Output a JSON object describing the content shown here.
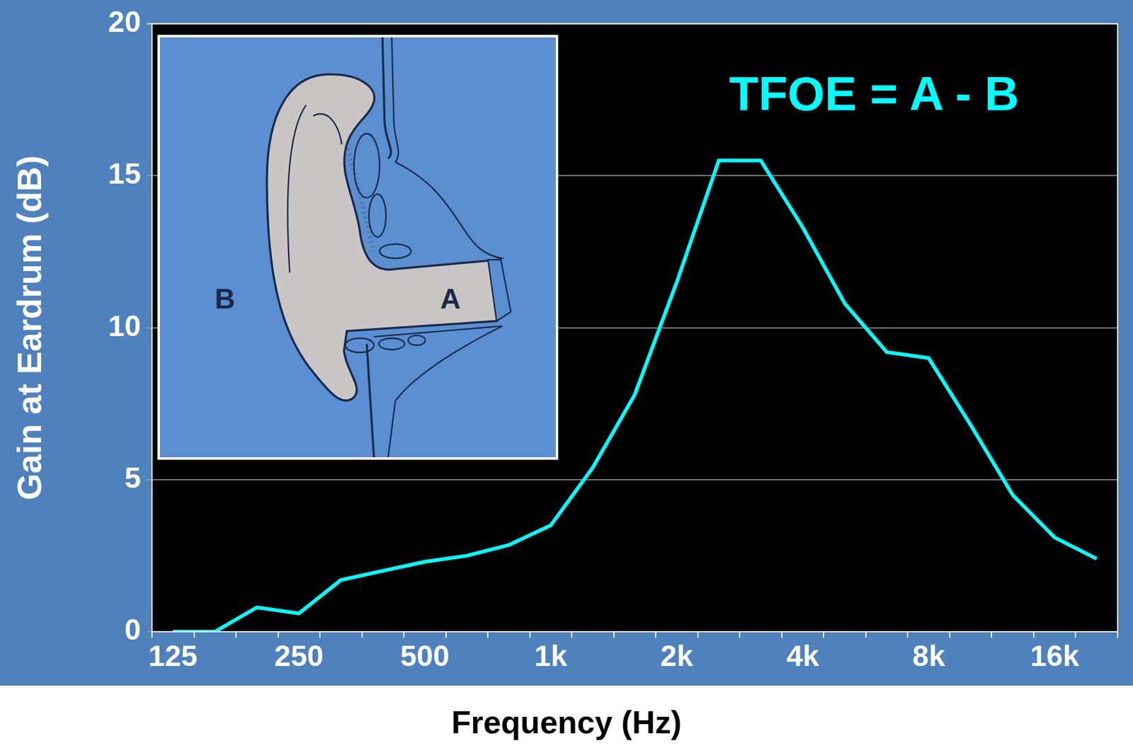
{
  "chart_data": {
    "type": "line",
    "x_label": "Frequency (Hz)",
    "y_label": "Gain at Eardrum (dB)",
    "annotation": "TFOE = A - B",
    "inset_labels": [
      "A",
      "B"
    ],
    "categories": [
      "125",
      null,
      null,
      "250",
      null,
      null,
      "500",
      null,
      null,
      "1k",
      null,
      null,
      "2k",
      null,
      null,
      "4k",
      null,
      null,
      "8k",
      null,
      null,
      "16k",
      null
    ],
    "values": [
      0,
      0,
      0.8,
      0.6,
      1.7,
      2.0,
      2.3,
      2.5,
      2.85,
      3.5,
      5.4,
      7.8,
      11.5,
      15.5,
      15.5,
      13.3,
      10.8,
      9.2,
      9.0,
      6.8,
      4.5,
      3.1,
      2.4
    ],
    "color": "#00ffff",
    "ylim": [
      0,
      20
    ],
    "yticks": [
      0,
      5,
      10,
      15,
      20
    ],
    "grid": true
  }
}
